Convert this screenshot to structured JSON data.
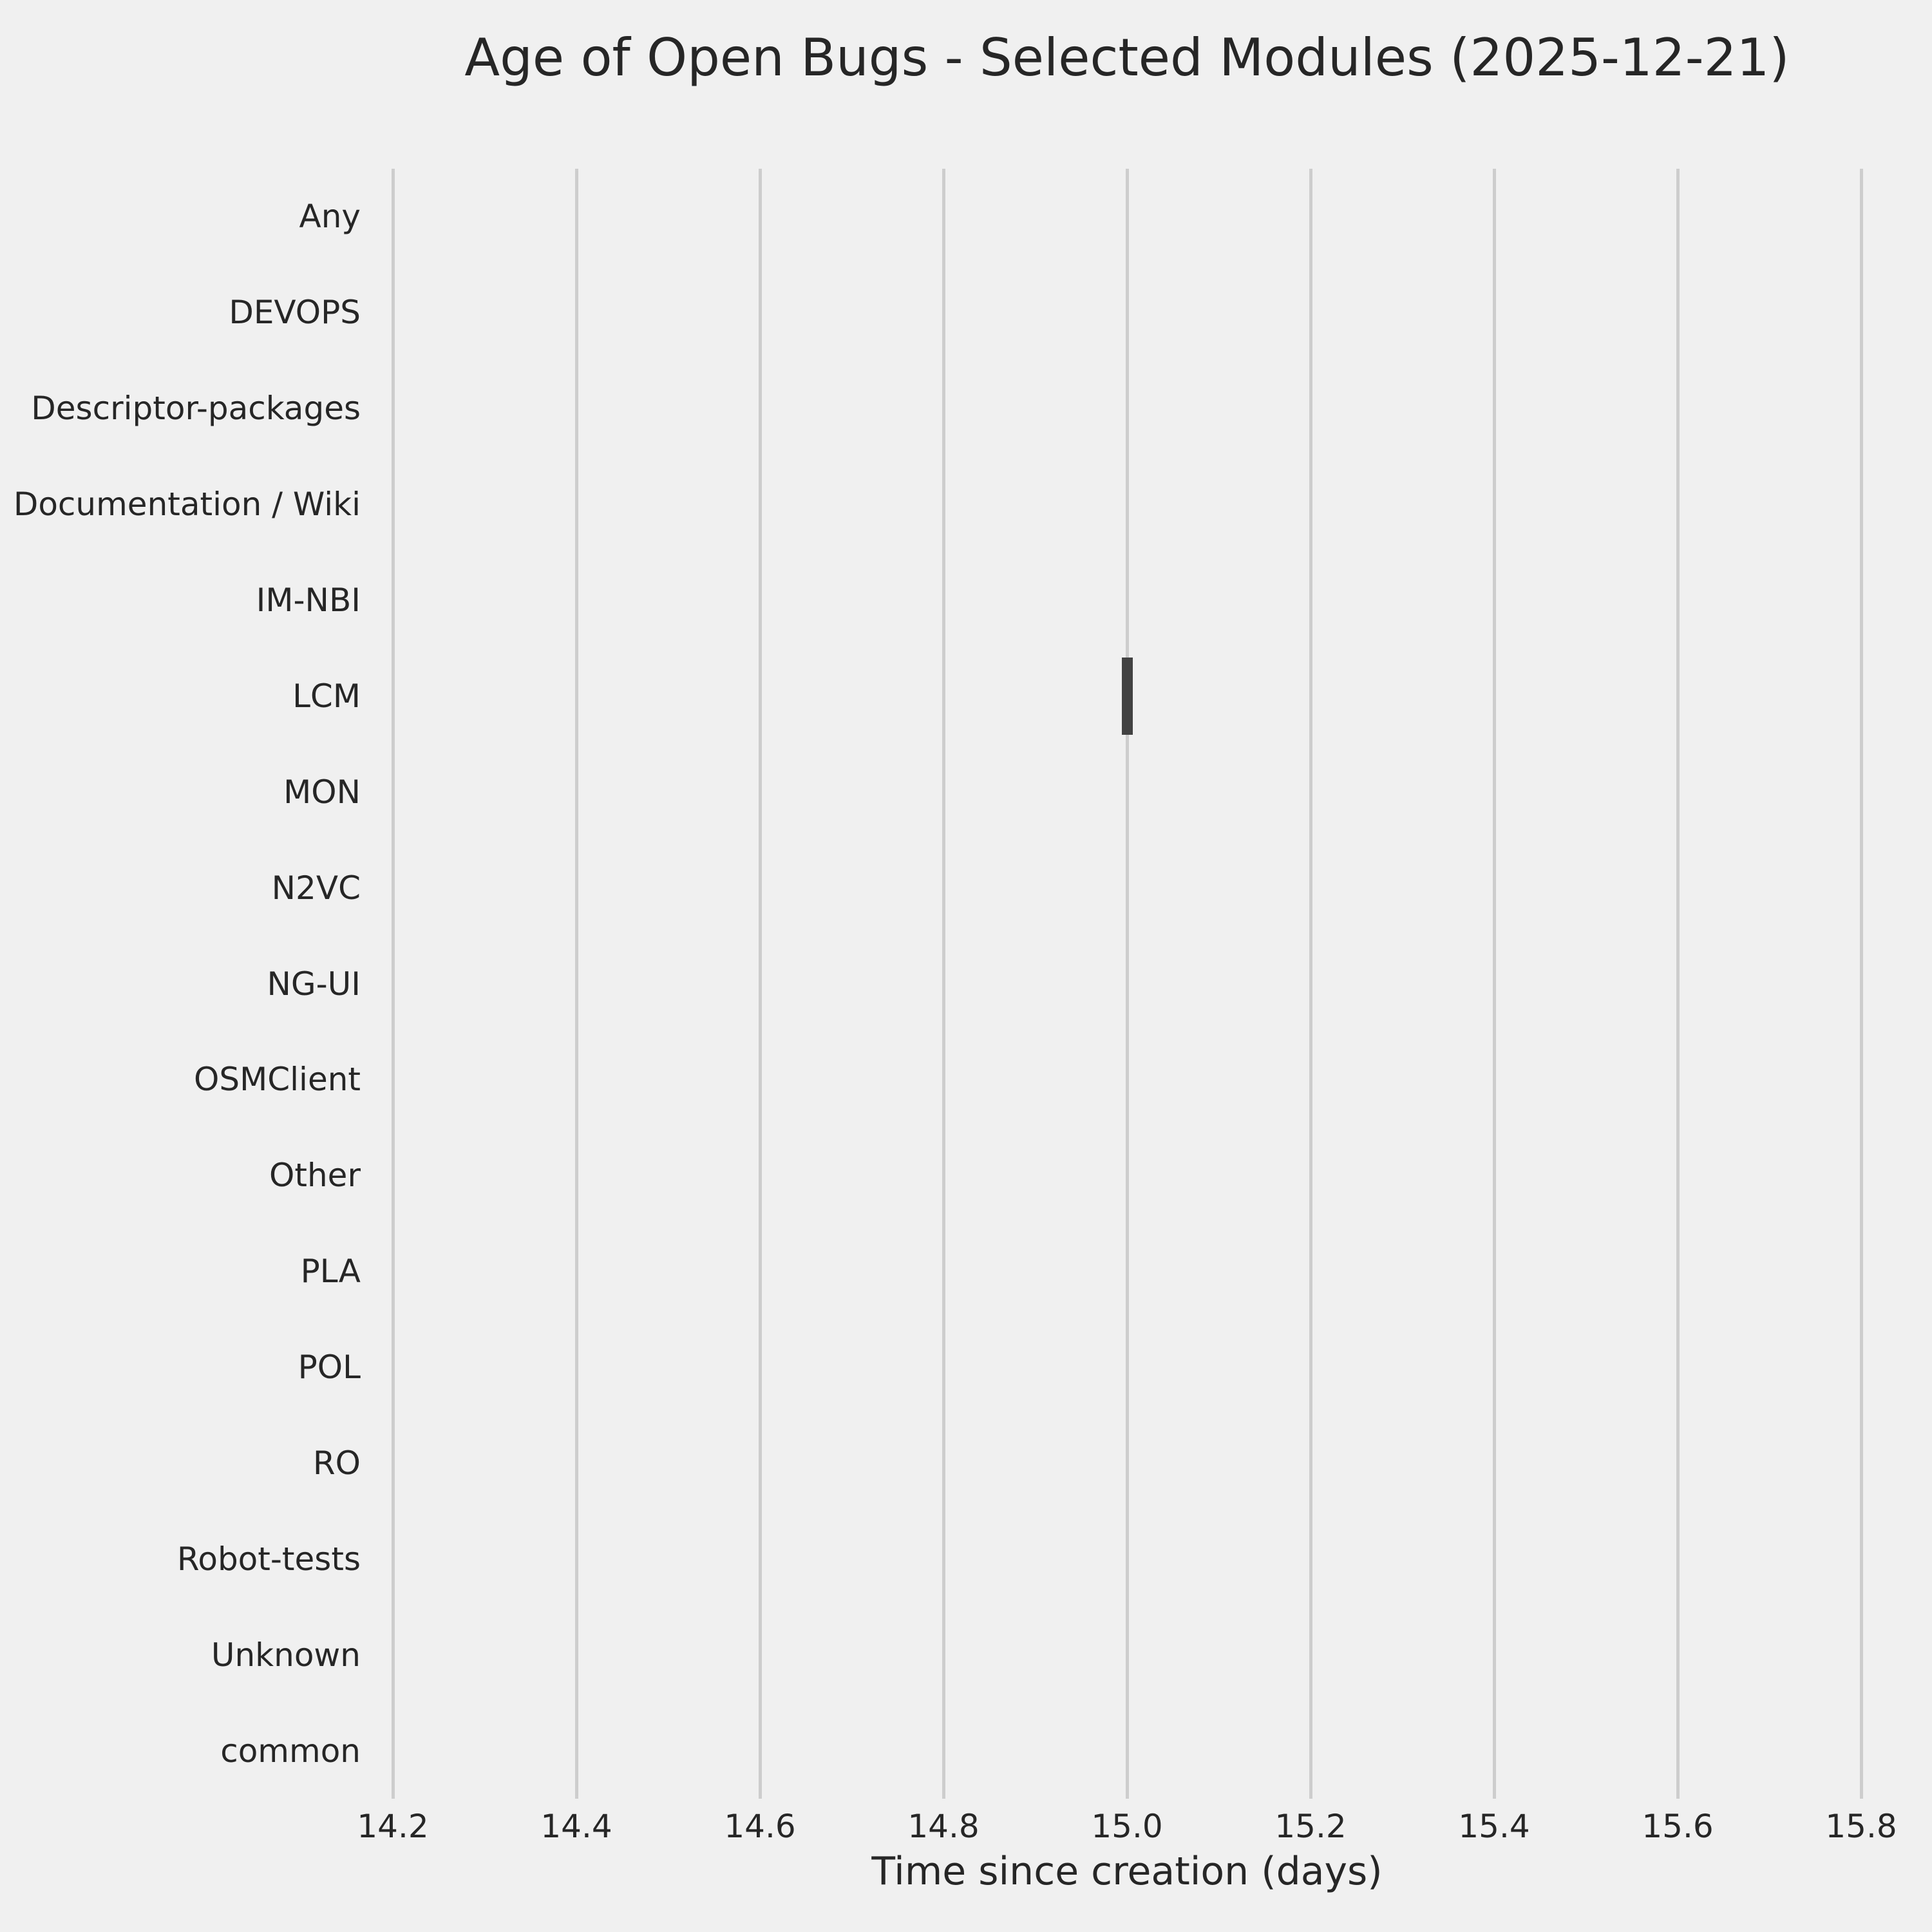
{
  "chart_data": {
    "type": "bar",
    "orientation": "horizontal",
    "title": "Age of Open Bugs - Selected Modules (2025-12-21)",
    "xlabel": "Time since creation (days)",
    "ylabel": "",
    "categories": [
      "Any",
      "DEVOPS",
      "Descriptor-packages",
      "Documentation / Wiki",
      "IM-NBI",
      "LCM",
      "MON",
      "N2VC",
      "NG-UI",
      "OSMClient",
      "Other",
      "PLA",
      "POL",
      "RO",
      "Robot-tests",
      "Unknown",
      "common"
    ],
    "series": [
      {
        "name": "Open bug age (days)",
        "values": [
          null,
          null,
          null,
          null,
          null,
          15.0,
          null,
          null,
          null,
          null,
          null,
          null,
          null,
          null,
          null,
          null,
          null
        ]
      }
    ],
    "marker": {
      "category": "LCM",
      "value": 15.0
    },
    "xticks": [
      "14.2",
      "14.4",
      "14.6",
      "14.8",
      "15.0",
      "15.2",
      "15.4",
      "15.6",
      "15.8"
    ],
    "xlim": [
      14.2,
      15.8
    ],
    "grid": "vertical-only",
    "legend": "none",
    "colors": {
      "background": "#f0f0f0",
      "gridline": "#cdcdcd",
      "text": "#262626",
      "marker": "#424242"
    }
  }
}
